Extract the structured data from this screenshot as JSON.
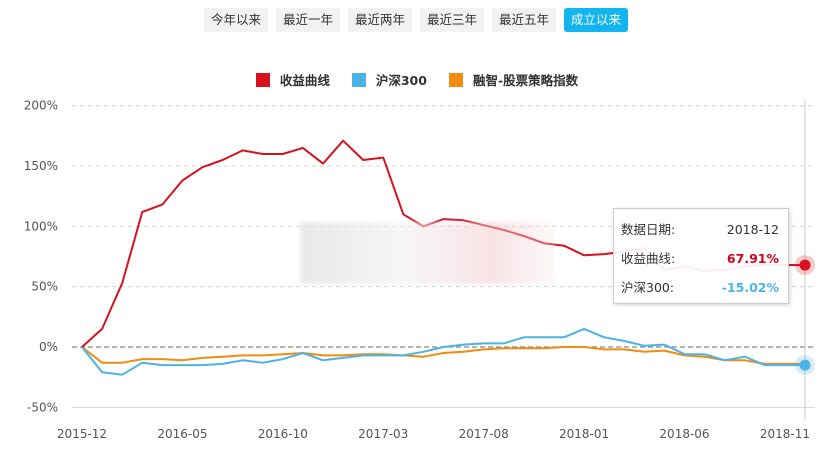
{
  "range_buttons": [
    {
      "label": "今年以来",
      "active": false
    },
    {
      "label": "最近一年",
      "active": false
    },
    {
      "label": "最近两年",
      "active": false
    },
    {
      "label": "最近三年",
      "active": false
    },
    {
      "label": "最近五年",
      "active": false
    },
    {
      "label": "成立以来",
      "active": true
    }
  ],
  "legend": [
    {
      "label": "收益曲线",
      "color": "#d9101e"
    },
    {
      "label": "沪深300",
      "color": "#4bb3e6"
    },
    {
      "label": "融智-股票策略指数",
      "color": "#f28c0f"
    }
  ],
  "tooltip": {
    "date_label": "数据日期:",
    "date_value": "2018-12",
    "series1_label": "收益曲线:",
    "series1_value": "67.91%",
    "series2_label": "沪深300:",
    "series2_value": "-15.02%"
  },
  "chart_data": {
    "type": "line",
    "title": "",
    "xlabel": "",
    "ylabel": "",
    "ylim": [
      -50,
      200
    ],
    "y_ticks": [
      "200%",
      "150%",
      "100%",
      "50%",
      "0%",
      "-50%"
    ],
    "x_ticks": [
      "2015-12",
      "2016-05",
      "2016-10",
      "2017-03",
      "2017-08",
      "2018-01",
      "2018-06",
      "2018-11"
    ],
    "grid": true,
    "legend_position": "top",
    "x": [
      "2015-12",
      "2016-01",
      "2016-02",
      "2016-03",
      "2016-04",
      "2016-05",
      "2016-06",
      "2016-07",
      "2016-08",
      "2016-09",
      "2016-10",
      "2016-11",
      "2016-12",
      "2017-01",
      "2017-02",
      "2017-03",
      "2017-04",
      "2017-05",
      "2017-06",
      "2017-07",
      "2017-08",
      "2017-09",
      "2017-10",
      "2017-11",
      "2017-12",
      "2018-01",
      "2018-02",
      "2018-03",
      "2018-04",
      "2018-05",
      "2018-06",
      "2018-07",
      "2018-08",
      "2018-09",
      "2018-10",
      "2018-11",
      "2018-12"
    ],
    "series": [
      {
        "name": "收益曲线",
        "color": "#d9101e",
        "values": [
          0,
          15,
          53,
          112,
          118,
          138,
          149,
          155,
          163,
          160,
          160,
          165,
          152,
          171,
          155,
          157,
          110,
          100,
          106,
          105,
          101,
          97,
          92,
          86,
          84,
          76,
          77,
          79,
          82,
          64,
          67,
          63,
          64,
          67,
          68,
          68,
          67.91
        ]
      },
      {
        "name": "沪深300",
        "color": "#4bb3e6",
        "values": [
          0,
          -21,
          -23,
          -13,
          -15,
          -15,
          -15,
          -14,
          -11,
          -13,
          -10,
          -5,
          -11,
          -9,
          -7,
          -7,
          -7,
          -4,
          0,
          2,
          3,
          3,
          8,
          8,
          8,
          15,
          8,
          5,
          1,
          2,
          -6,
          -6,
          -11,
          -8,
          -15,
          -15,
          -15.02
        ]
      },
      {
        "name": "融智-股票策略指数",
        "color": "#f28c0f",
        "values": [
          0,
          -13,
          -13,
          -10,
          -10,
          -11,
          -9,
          -8,
          -7,
          -7,
          -6,
          -5,
          -7,
          -7,
          -6,
          -6,
          -7,
          -8,
          -5,
          -4,
          -2,
          -1,
          -1,
          -1,
          0,
          0,
          -2,
          -2,
          -4,
          -3,
          -7,
          -8,
          -11,
          -11,
          -14,
          -14,
          -14
        ]
      }
    ]
  }
}
